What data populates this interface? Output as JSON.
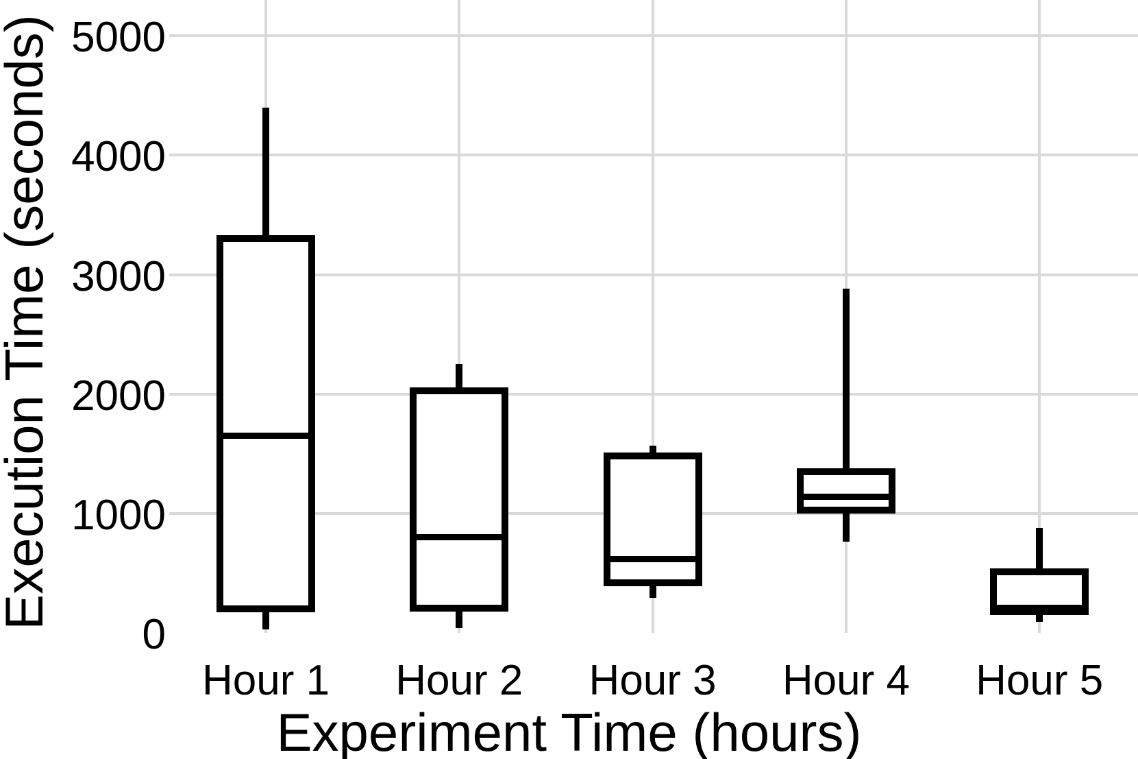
{
  "chart_data": {
    "type": "boxplot",
    "title": "",
    "xlabel": "Experiment Time (hours)",
    "ylabel": "Execution Time (seconds)",
    "categories": [
      "Hour 1",
      "Hour 2",
      "Hour 3",
      "Hour 4",
      "Hour 5"
    ],
    "yticks": [
      {
        "label": "0",
        "value": 0
      },
      {
        "label": "1000",
        "value": 1000
      },
      {
        "label": "2000",
        "value": 2000
      },
      {
        "label": "3000",
        "value": 3000
      },
      {
        "label": "4000",
        "value": 4000
      },
      {
        "label": "5000",
        "value": 5000
      }
    ],
    "ylim": [
      0,
      5300
    ],
    "grid": true,
    "legend_position": "none",
    "boxes": [
      {
        "category": "Hour 1",
        "whisker_low": 30,
        "q1": 200,
        "median": 1650,
        "q3": 3300,
        "whisker_high": 4400
      },
      {
        "category": "Hour 2",
        "whisker_low": 40,
        "q1": 210,
        "median": 800,
        "q3": 2030,
        "whisker_high": 2250
      },
      {
        "category": "Hour 3",
        "whisker_low": 290,
        "q1": 420,
        "median": 620,
        "q3": 1480,
        "whisker_high": 1570
      },
      {
        "category": "Hour 4",
        "whisker_low": 765,
        "q1": 1030,
        "median": 1140,
        "q3": 1350,
        "whisker_high": 2880
      },
      {
        "category": "Hour 5",
        "whisker_low": 90,
        "q1": 180,
        "median": 210,
        "q3": 510,
        "whisker_high": 880
      }
    ],
    "colors": {
      "box_line": "#000000",
      "box_fill": "#ffffff",
      "grid": "#d9d9d9",
      "text": "#000000",
      "background": "#ffffff"
    }
  }
}
